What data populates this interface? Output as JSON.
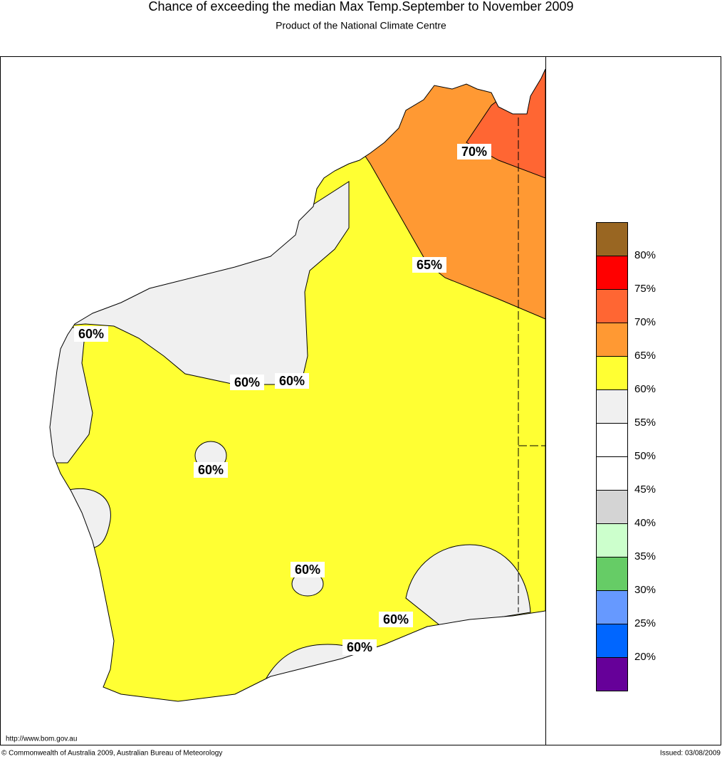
{
  "header": {
    "title": "Chance of exceeding the median Max Temp.September to November 2009",
    "subtitle": "Product of the National Climate Centre"
  },
  "map": {
    "contour_labels": [
      "70%",
      "65%",
      "60%",
      "60%",
      "60%",
      "60%",
      "60%",
      "60%",
      "60%"
    ]
  },
  "legend": {
    "colors": [
      "#996622",
      "#ff0000",
      "#ff6633",
      "#ff9933",
      "#ffff33",
      "#f0f0f0",
      "#ffffff",
      "#ffffff",
      "#d4d4d4",
      "#ccffcc",
      "#66cc66",
      "#6699ff",
      "#0066ff",
      "#660099"
    ],
    "labels": [
      "80%",
      "75%",
      "70%",
      "65%",
      "60%",
      "55%",
      "50%",
      "45%",
      "40%",
      "35%",
      "30%",
      "25%",
      "20%"
    ]
  },
  "footer": {
    "url": "http://www.bom.gov.au",
    "copyright": "© Commonwealth of Australia 2009, Australian Bureau of Meteorology",
    "issued": "Issued: 03/08/2009"
  }
}
